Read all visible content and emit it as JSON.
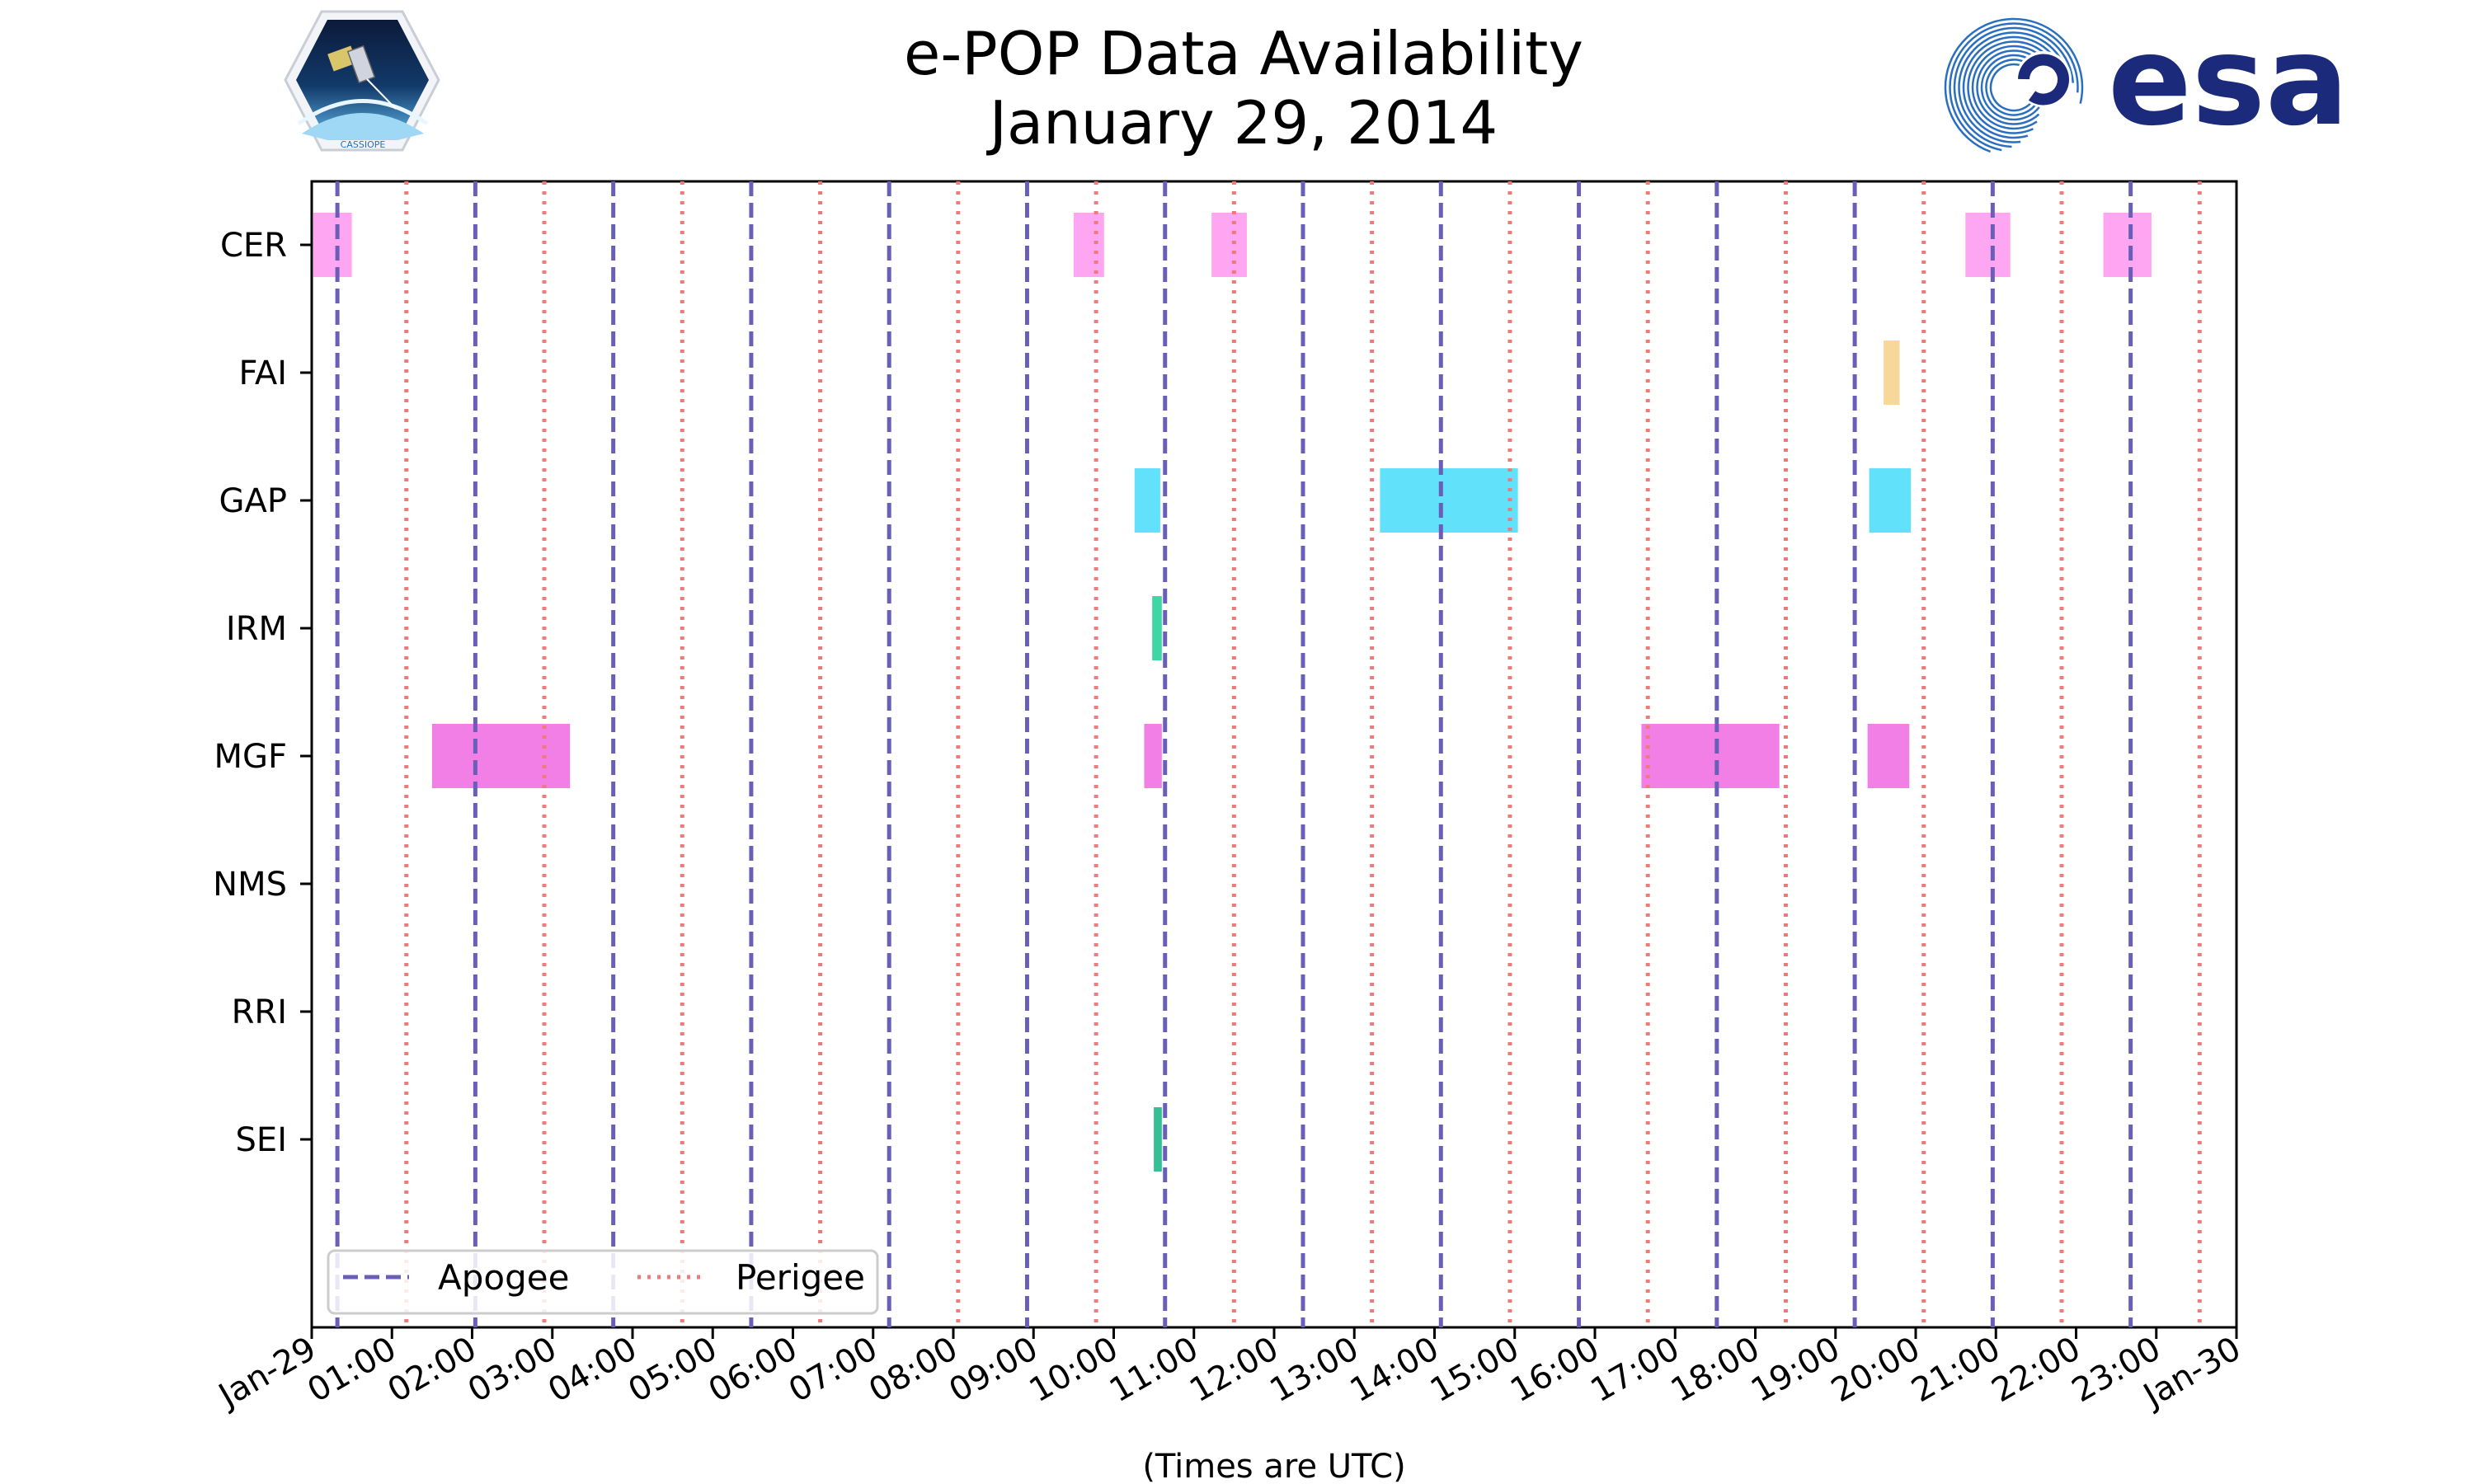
{
  "colors": {
    "apogee": "#6a5fb8",
    "perigee": "#f07a7a",
    "CER": "#ffa6f2",
    "FAI": "#f7d79a",
    "GAP": "#62e1fa",
    "IRM": "#3fd6a5",
    "MGF": "#f27fe6",
    "SEI": "#36bf96",
    "esa_blue": "#1b2a7a",
    "esa_swirl": "#2a6fbf"
  },
  "logos": {
    "left": {
      "icon": "cassiope-satellite-logo",
      "caption": "CASSIOPE"
    },
    "right": {
      "icon": "esa-swirl-logo",
      "text": "esa"
    }
  },
  "chart_data": {
    "type": "bar",
    "subtype": "timeline",
    "title": "e-POP Data Availability",
    "subtitle": "January 29, 2014",
    "xlabel": "(Times are UTC)",
    "ylabel": "",
    "xlim": [
      0,
      24
    ],
    "x_ticks": [
      "Jan-29",
      "01:00",
      "02:00",
      "03:00",
      "04:00",
      "05:00",
      "06:00",
      "07:00",
      "08:00",
      "09:00",
      "10:00",
      "11:00",
      "12:00",
      "13:00",
      "14:00",
      "15:00",
      "16:00",
      "17:00",
      "18:00",
      "19:00",
      "20:00",
      "21:00",
      "22:00",
      "23:00",
      "Jan-30"
    ],
    "categories": [
      "CER",
      "FAI",
      "GAP",
      "IRM",
      "MGF",
      "NMS",
      "RRI",
      "SEI"
    ],
    "apogee_times": [
      0.32,
      2.04,
      3.76,
      5.48,
      7.2,
      8.92,
      10.64,
      12.36,
      14.08,
      15.8,
      17.52,
      19.24,
      20.96,
      22.68
    ],
    "perigee_times": [
      1.18,
      2.9,
      4.62,
      6.34,
      8.06,
      9.78,
      11.5,
      13.22,
      14.94,
      16.66,
      18.38,
      20.1,
      21.82,
      23.54
    ],
    "intervals": {
      "CER": [
        [
          0.02,
          0.5
        ],
        [
          9.5,
          9.88
        ],
        [
          11.22,
          11.66
        ],
        [
          20.62,
          21.18
        ],
        [
          22.34,
          22.94
        ]
      ],
      "FAI": [
        [
          19.6,
          19.8
        ]
      ],
      "GAP": [
        [
          10.26,
          10.58
        ],
        [
          13.32,
          15.04
        ],
        [
          19.42,
          19.94
        ]
      ],
      "IRM": [
        [
          10.48,
          10.6
        ]
      ],
      "MGF": [
        [
          1.5,
          3.22
        ],
        [
          10.38,
          10.6
        ],
        [
          16.58,
          18.3
        ],
        [
          19.4,
          19.92
        ]
      ],
      "NMS": [],
      "RRI": [],
      "SEI": [
        [
          10.5,
          10.6
        ]
      ]
    },
    "legend": {
      "position": "lower-left",
      "entries": [
        {
          "label": "Apogee",
          "style": "dashed"
        },
        {
          "label": "Perigee",
          "style": "dotted"
        }
      ]
    }
  }
}
